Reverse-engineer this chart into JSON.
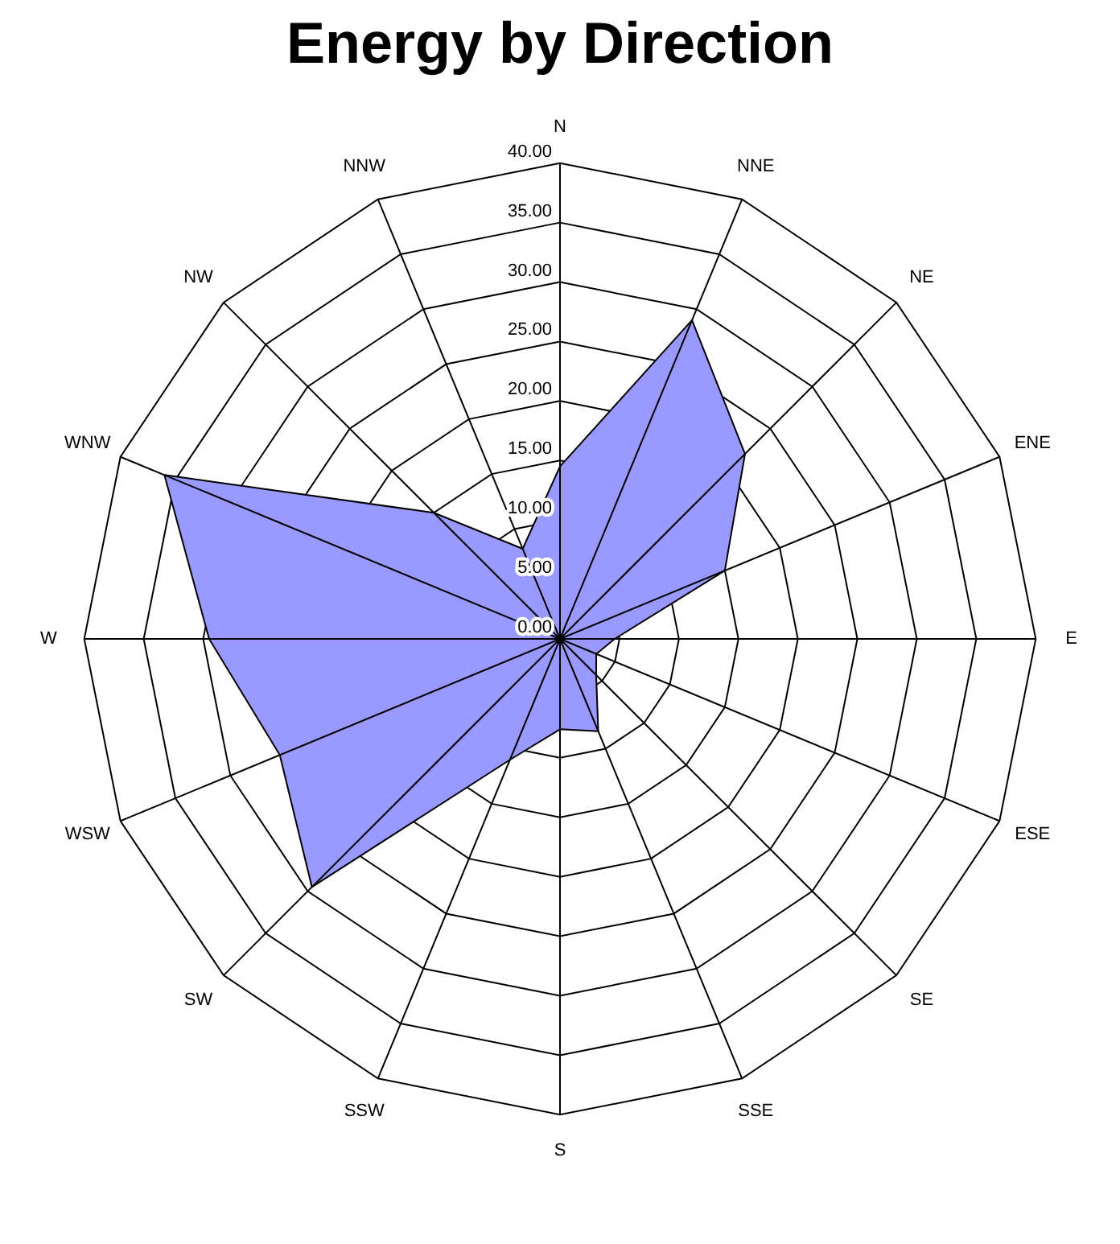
{
  "chart_data": {
    "type": "radar",
    "title": "Energy by Direction",
    "categories": [
      "N",
      "NNE",
      "NE",
      "ENE",
      "E",
      "ESE",
      "SE",
      "SSE",
      "S",
      "SSW",
      "SW",
      "WSW",
      "W",
      "WNW",
      "NW",
      "NNW"
    ],
    "series": [
      {
        "color": "#9999ff",
        "values": [
          14.5,
          29,
          22,
          15,
          4.6,
          3.3,
          4.3,
          8.4,
          7.6,
          11,
          29.5,
          25.5,
          29.5,
          36,
          15,
          8.2
        ]
      }
    ],
    "ylim": [
      0,
      40
    ],
    "yticks": [
      {
        "value": 0,
        "label": "0.00"
      },
      {
        "value": 5,
        "label": "5.00"
      },
      {
        "value": 10,
        "label": "10.00"
      },
      {
        "value": 15,
        "label": "15.00"
      },
      {
        "value": 20,
        "label": "20.00"
      },
      {
        "value": 25,
        "label": "25.00"
      },
      {
        "value": 30,
        "label": "30.00"
      },
      {
        "value": 35,
        "label": "35.00"
      },
      {
        "value": 40,
        "label": "40.00"
      }
    ],
    "grid": true
  }
}
